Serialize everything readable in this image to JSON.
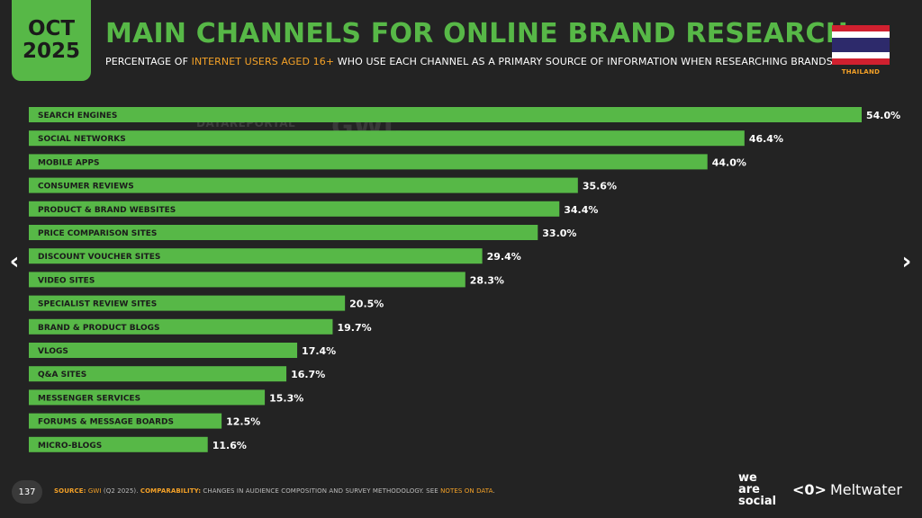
{
  "header": {
    "date_month": "OCT",
    "date_year": "2025",
    "title": "MAIN CHANNELS FOR ONLINE BRAND RESEARCH",
    "subtitle_pre": "PERCENTAGE OF ",
    "subtitle_highlight": "INTERNET USERS AGED 16+",
    "subtitle_post": " WHO USE EACH CHANNEL AS A PRIMARY SOURCE OF INFORMATION WHEN RESEARCHING BRANDS",
    "country": "THAILAND"
  },
  "watermark": {
    "left": "DATAREPORTAL",
    "right": "GWI."
  },
  "nav": {
    "prev": "‹",
    "next": "›"
  },
  "footer": {
    "page_number": "137",
    "source_label": "SOURCE:",
    "source_text": "GWI",
    "source_detail": " (Q2 2025). ",
    "comparability_label": "COMPARABILITY:",
    "comparability_text": " CHANGES IN AUDIENCE COMPOSITION AND SURVEY METHODOLOGY. SEE ",
    "notes_link": "NOTES ON DATA",
    "notes_end": "."
  },
  "branding": {
    "we": "we",
    "are": "are",
    "social": "social",
    "meltwater": "Meltwater"
  },
  "colors": {
    "accent": "#57b847",
    "highlight": "#f4a127",
    "background": "#232323"
  },
  "chart_data": {
    "type": "bar",
    "orientation": "horizontal",
    "categories": [
      "SEARCH ENGINES",
      "SOCIAL NETWORKS",
      "MOBILE APPS",
      "CONSUMER REVIEWS",
      "PRODUCT & BRAND WEBSITES",
      "PRICE COMPARISON SITES",
      "DISCOUNT VOUCHER SITES",
      "VIDEO SITES",
      "SPECIALIST REVIEW SITES",
      "BRAND & PRODUCT BLOGS",
      "VLOGS",
      "Q&A SITES",
      "MESSENGER SERVICES",
      "FORUMS & MESSAGE BOARDS",
      "MICRO-BLOGS"
    ],
    "values": [
      54.0,
      46.4,
      44.0,
      35.6,
      34.4,
      33.0,
      29.4,
      28.3,
      20.5,
      19.7,
      17.4,
      16.7,
      15.3,
      12.5,
      11.6
    ],
    "value_labels": [
      "54.0%",
      "46.4%",
      "44.0%",
      "35.6%",
      "34.4%",
      "33.0%",
      "29.4%",
      "28.3%",
      "20.5%",
      "19.7%",
      "17.4%",
      "16.7%",
      "15.3%",
      "12.5%",
      "11.6%"
    ],
    "xlim": [
      0,
      54.0
    ],
    "grid": false,
    "bar_color": "#57b847"
  }
}
